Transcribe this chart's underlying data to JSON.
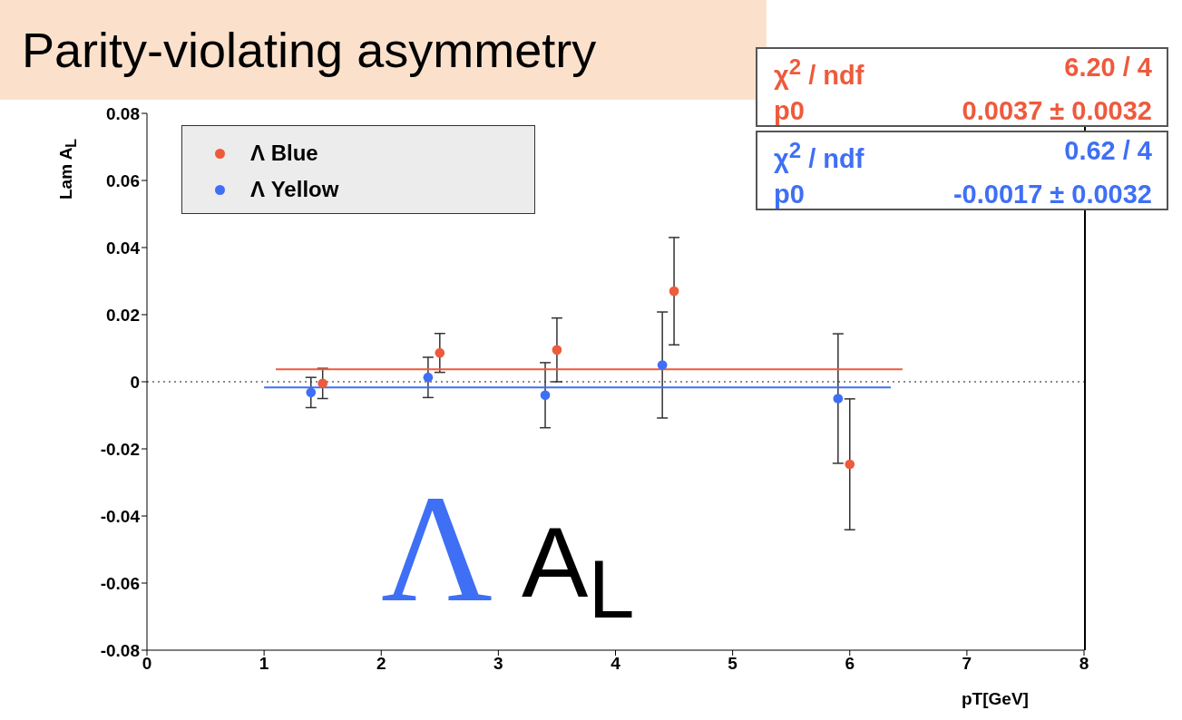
{
  "chart_data": {
    "type": "scatter",
    "title": "Parity-violating asymmetry",
    "xlabel": "pT[GeV]",
    "ylabel": "Lam A$_{L}$",
    "xlim": [
      0,
      8
    ],
    "xticks": [
      0,
      1,
      2,
      3,
      4,
      5,
      6,
      7,
      8
    ],
    "ylim": [
      -0.08,
      0.08
    ],
    "yticks": [
      -0.08,
      -0.06,
      -0.04,
      -0.02,
      0,
      0.02,
      0.04,
      0.06,
      0.08
    ],
    "grid": false,
    "legend": "top left",
    "marker": "circle",
    "series": [
      {
        "name": "Λ Blue",
        "color": "#ee5a3c",
        "x": [
          1.5,
          2.5,
          3.5,
          4.5,
          6
        ],
        "values": [
          -0.0005,
          0.0086,
          0.0095,
          0.027,
          -0.0246
        ],
        "errors": [
          0.0045,
          0.0058,
          0.0095,
          0.016,
          0.0195
        ]
      },
      {
        "name": "Λ Yellow",
        "color": "#3f6ff5",
        "x": [
          1.4,
          2.4,
          3.4,
          4.4,
          5.9
        ],
        "values": [
          -0.0032,
          0.0013,
          -0.004,
          0.005,
          -0.005
        ],
        "errors": [
          0.0045,
          0.006,
          0.0097,
          0.0158,
          0.0193
        ]
      },
      {
        "type": "line",
        "marker": "none",
        "color": "#ee5a3c",
        "x": [
          1.1,
          6.45
        ],
        "values": [
          0.0037,
          0.0037
        ]
      },
      {
        "type": "line",
        "marker": "none",
        "color": "#3f6ff5",
        "x": [
          1,
          6.35
        ],
        "values": [
          -0.0017,
          -0.0017
        ]
      }
    ],
    "ref_lines": [
      {
        "axis": "y",
        "value": 0,
        "line_style": "dotted",
        "color": "#666666"
      }
    ],
    "annotations": [
      "χ$^{2}$ / ndf",
      "6.20 / 4",
      "p0",
      "0.0037 ± 0.0032",
      "χ$^{2}$ / ndf",
      "0.62 / 4",
      "p0",
      "-0.0017 ± 0.0032",
      "Λ",
      "A$_{L}$"
    ]
  }
}
